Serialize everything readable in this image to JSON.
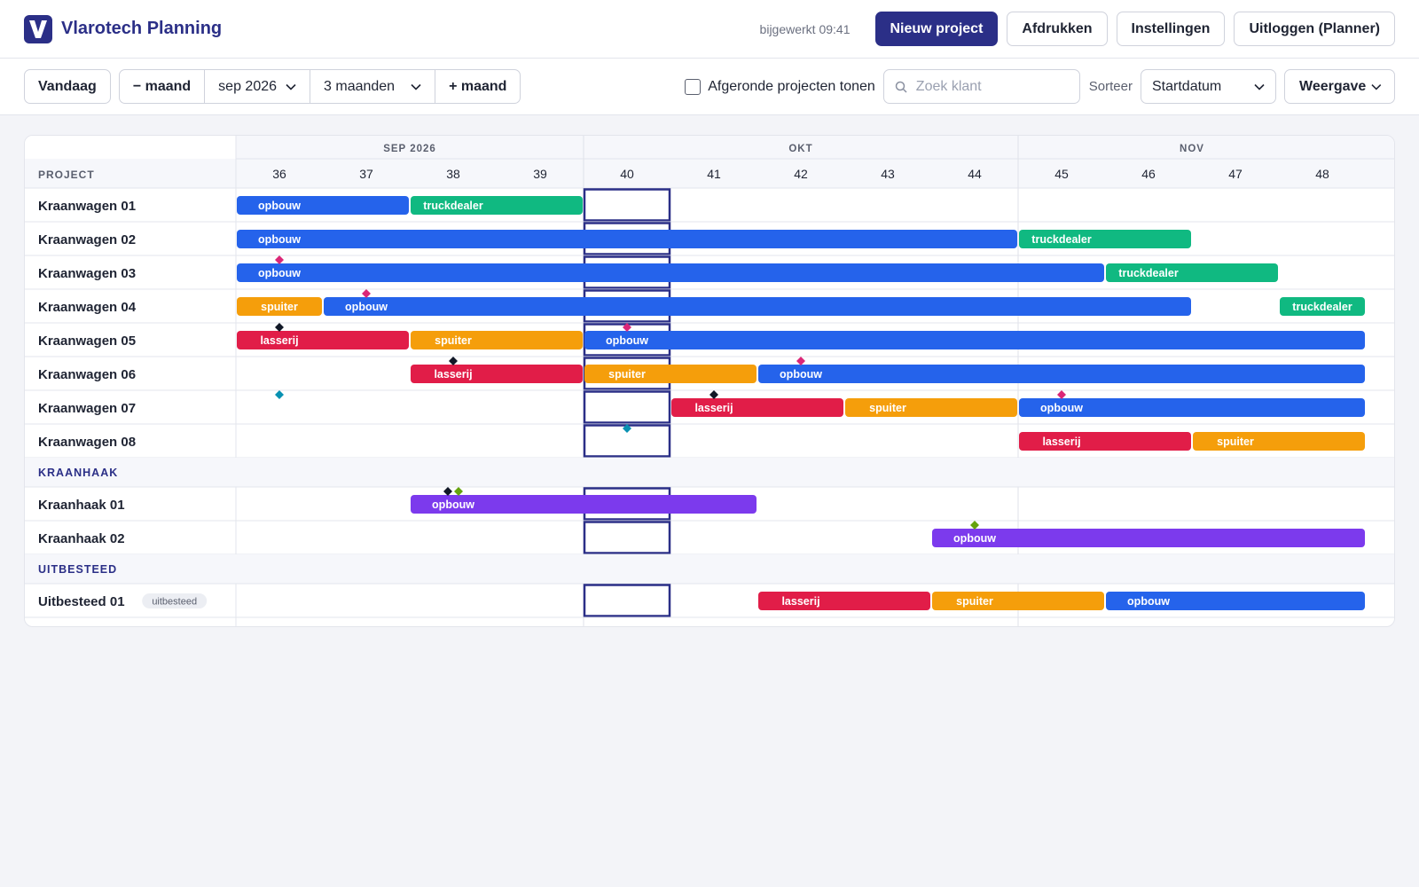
{
  "header": {
    "logo_letter": "V",
    "app_title": "Vlarotech Planning",
    "updated_text": "bijgewerkt 09:41",
    "buttons": [
      "Nieuw project",
      "Afdrukken",
      "Instellingen",
      "Uitloggen (Planner)"
    ]
  },
  "toolbar": {
    "today_label": "Vandaag",
    "prev_label": "− maand",
    "month_value": "sep 2026",
    "range_value": "3 maanden",
    "next_label": "+ maand",
    "show_done_label": "Afgeronde projecten tonen",
    "show_done_checked": false,
    "search_placeholder": "Zoek klant",
    "sort_label": "Sorteer",
    "sort_value": "Startdatum",
    "view_label": "Weergave"
  },
  "grid": {
    "project_header": "PROJECT",
    "months": [
      {
        "label": "SEP 2026",
        "weeks": [
          36,
          37,
          38,
          39
        ]
      },
      {
        "label": "OKT",
        "weeks": [
          40,
          41,
          42,
          43,
          44
        ]
      },
      {
        "label": "NOV",
        "weeks": [
          45,
          46,
          47,
          48
        ]
      }
    ],
    "weeks": [
      36,
      37,
      38,
      39,
      40,
      41,
      42,
      43,
      44,
      45,
      46,
      47,
      48
    ],
    "current_week": 40,
    "colors": {
      "opbouw": "#2563eb",
      "truckdealer": "#10b981",
      "spuiter": "#f59e0b",
      "lasserij": "#e11d48",
      "opbouw_haak": "#7c3aed",
      "marker_pink": "#db2777",
      "marker_black": "#111827",
      "marker_teal": "#0891b2",
      "marker_green": "#65a30d",
      "current_week_border": "#2b2f87"
    },
    "rows": [
      {
        "type": "project",
        "name": "Kraanwagen 01",
        "bars": [
          {
            "label": "opbouw",
            "kind": "opbouw",
            "start": 36,
            "end": 37
          },
          {
            "label": "truckdealer",
            "kind": "truckdealer",
            "start": 38,
            "end": 39
          }
        ],
        "markers": []
      },
      {
        "type": "project",
        "name": "Kraanwagen 02",
        "bars": [
          {
            "label": "opbouw",
            "kind": "opbouw",
            "start": 36,
            "end": 44
          },
          {
            "label": "truckdealer",
            "kind": "truckdealer",
            "start": 45,
            "end": 46
          }
        ],
        "markers": []
      },
      {
        "type": "project",
        "name": "Kraanwagen 03",
        "bars": [
          {
            "label": "opbouw",
            "kind": "opbouw",
            "start": 36,
            "end": 45
          },
          {
            "label": "truckdealer",
            "kind": "truckdealer",
            "start": 46,
            "end": 47
          }
        ],
        "markers": [
          {
            "week": 36,
            "color": "marker_pink"
          }
        ]
      },
      {
        "type": "project",
        "name": "Kraanwagen 04",
        "bars": [
          {
            "label": "spuiter",
            "kind": "spuiter",
            "start": 36,
            "end": 36
          },
          {
            "label": "opbouw",
            "kind": "opbouw",
            "start": 37,
            "end": 46
          },
          {
            "label": "truckdealer",
            "kind": "truckdealer",
            "start": 48,
            "end": 48
          }
        ],
        "markers": [
          {
            "week": 37,
            "color": "marker_pink"
          }
        ]
      },
      {
        "type": "project",
        "name": "Kraanwagen 05",
        "bars": [
          {
            "label": "lasserij",
            "kind": "lasserij",
            "start": 36,
            "end": 37
          },
          {
            "label": "spuiter",
            "kind": "spuiter",
            "start": 38,
            "end": 39
          },
          {
            "label": "opbouw",
            "kind": "opbouw",
            "start": 40,
            "end": 48
          }
        ],
        "markers": [
          {
            "week": 36,
            "color": "marker_black"
          },
          {
            "week": 40,
            "color": "marker_pink"
          }
        ]
      },
      {
        "type": "project",
        "name": "Kraanwagen 06",
        "bars": [
          {
            "label": "lasserij",
            "kind": "lasserij",
            "start": 38,
            "end": 39
          },
          {
            "label": "spuiter",
            "kind": "spuiter",
            "start": 40,
            "end": 41
          },
          {
            "label": "opbouw",
            "kind": "opbouw",
            "start": 42,
            "end": 48
          }
        ],
        "markers": [
          {
            "week": 38,
            "color": "marker_black"
          },
          {
            "week": 42,
            "color": "marker_pink"
          }
        ]
      },
      {
        "type": "project",
        "name": "Kraanwagen 07",
        "bars": [
          {
            "label": "lasserij",
            "kind": "lasserij",
            "start": 41,
            "end": 42
          },
          {
            "label": "spuiter",
            "kind": "spuiter",
            "start": 43,
            "end": 44
          },
          {
            "label": "opbouw",
            "kind": "opbouw",
            "start": 45,
            "end": 48
          }
        ],
        "markers": [
          {
            "week": 36,
            "color": "marker_teal"
          },
          {
            "week": 41,
            "color": "marker_black"
          },
          {
            "week": 45,
            "color": "marker_pink"
          }
        ]
      },
      {
        "type": "project",
        "name": "Kraanwagen 08",
        "bars": [
          {
            "label": "lasserij",
            "kind": "lasserij",
            "start": 45,
            "end": 46
          },
          {
            "label": "spuiter",
            "kind": "spuiter",
            "start": 47,
            "end": 48
          }
        ],
        "markers": [
          {
            "week": 40,
            "color": "marker_teal"
          }
        ]
      },
      {
        "type": "group",
        "name": "KRAANHAAK"
      },
      {
        "type": "project",
        "name": "Kraanhaak 01",
        "bars": [
          {
            "label": "opbouw",
            "kind": "opbouw_haak",
            "start": 38,
            "end": 41
          }
        ],
        "markers": [
          {
            "week": 38,
            "color": "marker_black",
            "offset": -1
          },
          {
            "week": 38,
            "color": "marker_green",
            "offset": 1
          }
        ]
      },
      {
        "type": "project",
        "name": "Kraanhaak 02",
        "bars": [
          {
            "label": "opbouw",
            "kind": "opbouw_haak",
            "start": 44,
            "end": 48
          }
        ],
        "markers": [
          {
            "week": 44,
            "color": "marker_green"
          }
        ]
      },
      {
        "type": "group",
        "name": "UITBESTEED"
      },
      {
        "type": "project",
        "name": "Uitbesteed 01",
        "badge": "uitbesteed",
        "bars": [
          {
            "label": "lasserij",
            "kind": "lasserij",
            "start": 42,
            "end": 43
          },
          {
            "label": "spuiter",
            "kind": "spuiter",
            "start": 44,
            "end": 45
          },
          {
            "label": "opbouw",
            "kind": "opbouw",
            "start": 46,
            "end": 48
          }
        ],
        "markers": []
      }
    ]
  }
}
